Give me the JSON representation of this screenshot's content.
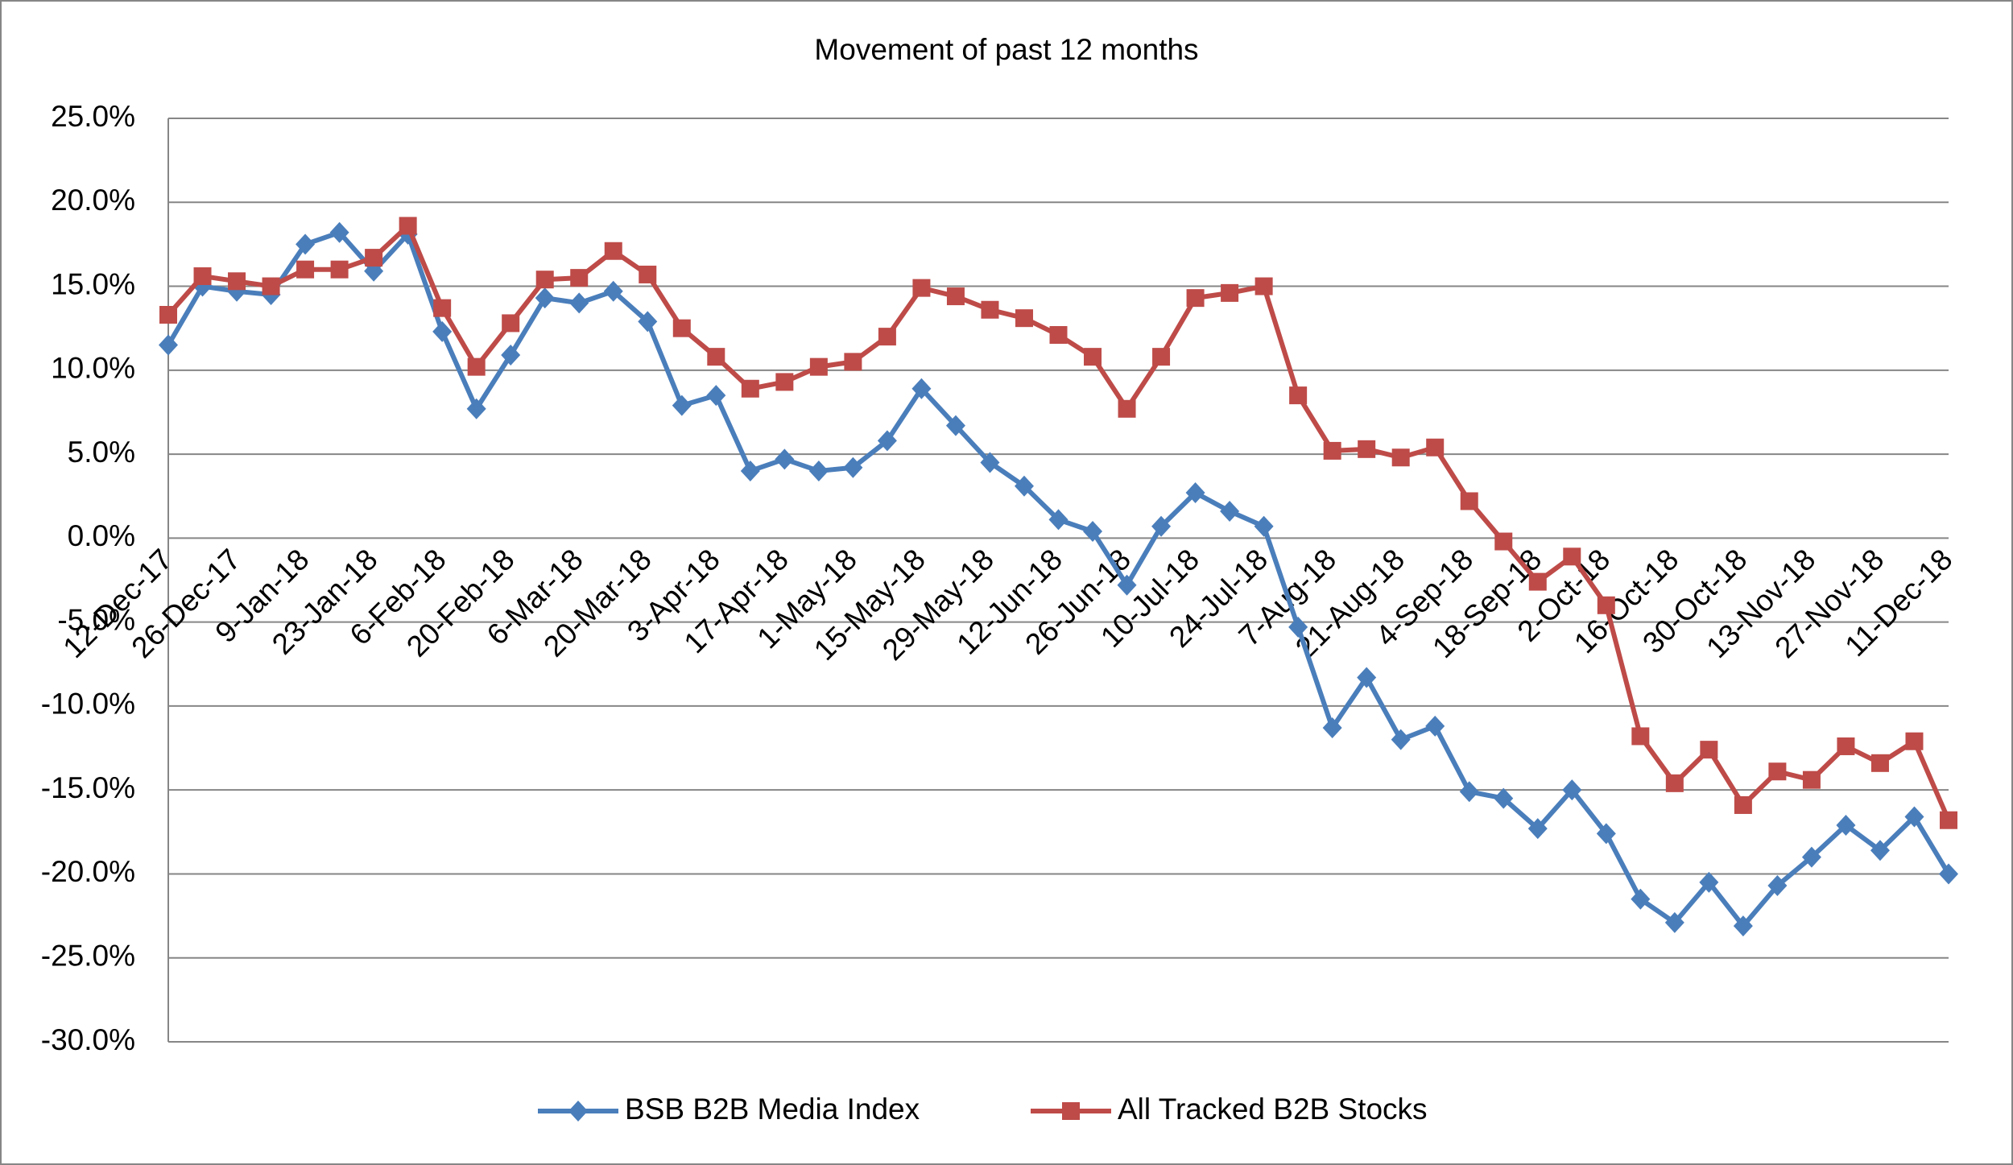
{
  "chart_data": {
    "type": "line",
    "title": "Movement of past 12 months",
    "categories": [
      "12-Dec-17",
      null,
      "26-Dec-17",
      null,
      "9-Jan-18",
      null,
      "23-Jan-18",
      null,
      "6-Feb-18",
      null,
      "20-Feb-18",
      null,
      "6-Mar-18",
      null,
      "20-Mar-18",
      null,
      "3-Apr-18",
      null,
      "17-Apr-18",
      null,
      "1-May-18",
      null,
      "15-May-18",
      null,
      "29-May-18",
      null,
      "12-Jun-18",
      null,
      "26-Jun-18",
      null,
      "10-Jul-18",
      null,
      "24-Jul-18",
      null,
      "7-Aug-18",
      null,
      "21-Aug-18",
      null,
      "4-Sep-18",
      null,
      "18-Sep-18",
      null,
      "2-Oct-18",
      null,
      "16-Oct-18",
      null,
      "30-Oct-18",
      null,
      "13-Nov-18",
      null,
      "27-Nov-18",
      null,
      "11-Dec-18"
    ],
    "series": [
      {
        "name": "BSB B2B Media Index",
        "color": "#4a7ebb",
        "marker": "diamond",
        "values": [
          11.5,
          15.0,
          14.7,
          14.5,
          17.5,
          18.2,
          15.9,
          18.1,
          12.3,
          7.7,
          10.9,
          14.3,
          14.0,
          14.7,
          12.9,
          7.9,
          8.5,
          4.0,
          4.7,
          4.0,
          4.2,
          5.8,
          8.9,
          6.7,
          4.5,
          3.1,
          1.1,
          0.4,
          -2.8,
          0.7,
          2.7,
          1.6,
          0.7,
          -5.3,
          -11.3,
          -8.3,
          -12.0,
          -11.2,
          -15.1,
          -15.5,
          -17.3,
          -15.0,
          -17.6,
          -21.5,
          -22.9,
          -20.5,
          -23.1,
          -20.7,
          -19.0,
          -17.1,
          -18.6,
          -16.6,
          -20.0
        ]
      },
      {
        "name": "All Tracked B2B Stocks",
        "color": "#be4b48",
        "marker": "square",
        "values": [
          13.3,
          15.6,
          15.3,
          15.0,
          16.0,
          16.0,
          16.7,
          18.6,
          13.7,
          10.2,
          12.8,
          15.4,
          15.5,
          17.1,
          15.7,
          12.5,
          10.8,
          8.9,
          9.3,
          10.2,
          10.5,
          12.0,
          14.9,
          14.4,
          13.6,
          13.1,
          12.1,
          10.8,
          7.7,
          10.8,
          14.3,
          14.6,
          15.0,
          8.5,
          5.2,
          5.3,
          4.8,
          5.4,
          2.2,
          -0.2,
          -2.6,
          -1.1,
          -4.0,
          -11.8,
          -14.6,
          -12.6,
          -15.9,
          -13.9,
          -14.4,
          -12.4,
          -13.4,
          -12.1,
          -16.8
        ]
      }
    ],
    "ylim": [
      -30,
      25
    ],
    "yticks": [
      {
        "value": -30,
        "label": "-30.0%"
      },
      {
        "value": -25,
        "label": "-25.0%"
      },
      {
        "value": -20,
        "label": "-20.0%"
      },
      {
        "value": -15,
        "label": "-15.0%"
      },
      {
        "value": -10,
        "label": "-10.0%"
      },
      {
        "value": -5,
        "label": "-5.0%"
      },
      {
        "value": 0,
        "label": "0.0%"
      },
      {
        "value": 5,
        "label": "5.0%"
      },
      {
        "value": 10,
        "label": "10.0%"
      },
      {
        "value": 15,
        "label": "15.0%"
      },
      {
        "value": 20,
        "label": "20.0%"
      },
      {
        "value": 25,
        "label": "25.0%"
      }
    ],
    "grid": true,
    "legend": "bottom"
  }
}
